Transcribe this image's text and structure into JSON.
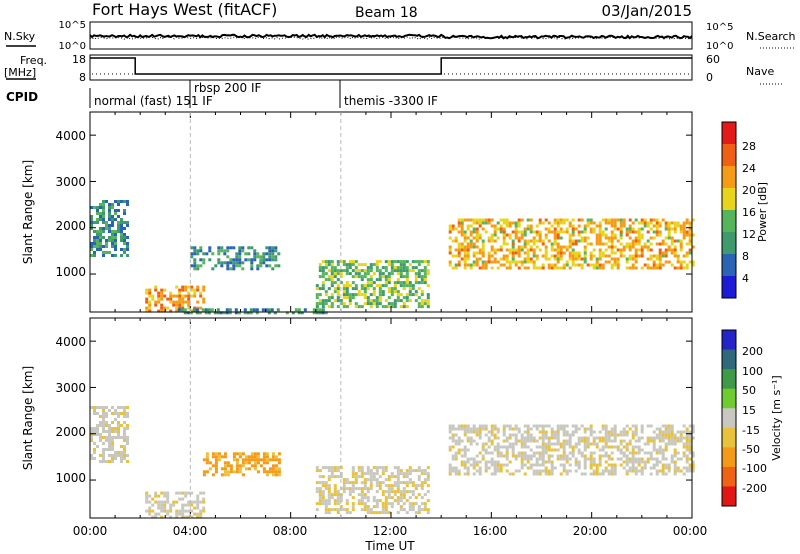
{
  "header": {
    "site": "Fort Hays West (fitACF)",
    "beam": "Beam 18",
    "date": "03/Jan/2015"
  },
  "strip_panels": {
    "nsky": {
      "left_label": "N.Sky",
      "left_ticks": [
        "10^5",
        "10^0"
      ],
      "right_label": "N.Search",
      "right_ticks": [
        "10^5",
        "10^0"
      ]
    },
    "freq": {
      "left_label_top": "Freq.",
      "left_label_bottom": "[MHz]",
      "left_ticks": [
        "18",
        "8"
      ],
      "right_label": "Nave",
      "right_ticks": [
        "60",
        "0"
      ]
    },
    "cpid": {
      "label": "CPID",
      "modes": [
        {
          "text": "normal (fast) 151 IF",
          "start_hr": 0.0
        },
        {
          "text": "rbsp 200 IF",
          "start_hr": 4.0
        },
        {
          "text": "themis -3300 IF",
          "start_hr": 10.0
        }
      ]
    }
  },
  "power_panel": {
    "ylabel": "Slant Range [km]",
    "yticks": [
      "1000",
      "2000",
      "3000",
      "4000"
    ],
    "colorbar_label": "Power [dB]",
    "colorbar_ticks": [
      "4",
      "8",
      "12",
      "16",
      "20",
      "24",
      "28"
    ]
  },
  "velocity_panel": {
    "ylabel": "Slant Range [km]",
    "yticks": [
      "1000",
      "2000",
      "3000",
      "4000"
    ],
    "colorbar_label": "Velocity [m s⁻¹]",
    "colorbar_ticks": [
      "200",
      "100",
      "50",
      "15",
      "-15",
      "-50",
      "-100",
      "-200"
    ]
  },
  "xaxis": {
    "label": "Time UT",
    "ticks": [
      "00:00",
      "04:00",
      "08:00",
      "12:00",
      "16:00",
      "20:00",
      "00:00"
    ]
  },
  "colors": {
    "power_scale": [
      "#1c1cd6",
      "#2a64b4",
      "#3f9a6e",
      "#56b45a",
      "#e9d41c",
      "#f59b16",
      "#f06014",
      "#e41a1a"
    ],
    "velocity_scale": [
      "#2424c8",
      "#2f6a7c",
      "#3f9a47",
      "#6ecb30",
      "#c8c8c0",
      "#e9c23c",
      "#f59a18",
      "#f06214",
      "#e21616"
    ]
  },
  "chart_data": {
    "type": "heatmap",
    "x_range_hours": [
      0,
      24
    ],
    "y_range_km": [
      180,
      4500
    ],
    "frequency_mhz": [
      {
        "start_hr": 0.0,
        "end_hr": 1.8,
        "value": 18
      },
      {
        "start_hr": 1.8,
        "end_hr": 14.0,
        "value": 8
      },
      {
        "start_hr": 14.0,
        "end_hr": 24.0,
        "value": 18
      }
    ],
    "mode_change_hours": [
      4.0,
      10.0,
      14.0
    ],
    "power_features": [
      {
        "hr": [
          0.0,
          1.5
        ],
        "km": [
          1400,
          2600
        ],
        "db": 10
      },
      {
        "hr": [
          2.2,
          4.5
        ],
        "km": [
          200,
          750
        ],
        "db": 22
      },
      {
        "hr": [
          3.5,
          9.5
        ],
        "km": [
          180,
          260
        ],
        "db": 10
      },
      {
        "hr": [
          4.0,
          7.5
        ],
        "km": [
          1100,
          1600
        ],
        "db": 9
      },
      {
        "hr": [
          9.0,
          13.5
        ],
        "km": [
          300,
          1300
        ],
        "db": 14
      },
      {
        "hr": [
          14.3,
          24.0
        ],
        "km": [
          1100,
          2200
        ],
        "db": 20
      }
    ],
    "velocity_features": [
      {
        "hr": [
          0.0,
          1.5
        ],
        "km": [
          1400,
          2600
        ],
        "m_s": -5
      },
      {
        "hr": [
          2.2,
          4.5
        ],
        "km": [
          200,
          750
        ],
        "m_s": -5
      },
      {
        "hr": [
          4.5,
          7.5
        ],
        "km": [
          1100,
          1600
        ],
        "m_s": -60
      },
      {
        "hr": [
          9.0,
          13.5
        ],
        "km": [
          300,
          1300
        ],
        "m_s": -10
      },
      {
        "hr": [
          14.3,
          24.0
        ],
        "km": [
          1100,
          2200
        ],
        "m_s": -5
      }
    ]
  }
}
